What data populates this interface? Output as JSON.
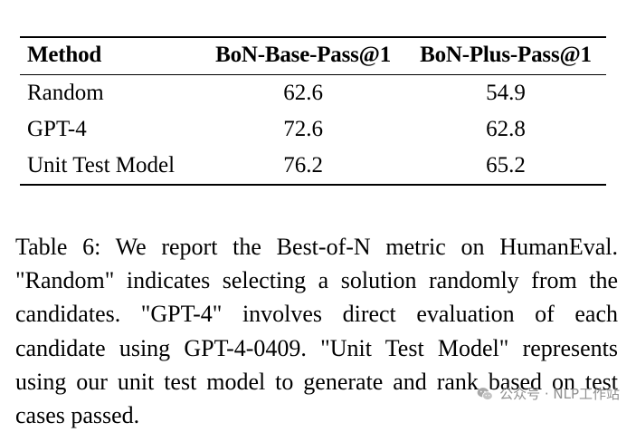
{
  "table": {
    "headers": [
      "Method",
      "BoN-Base-Pass@1",
      "BoN-Plus-Pass@1"
    ],
    "rows": [
      {
        "method": "Random",
        "base": "62.6",
        "plus": "54.9"
      },
      {
        "method": "GPT-4",
        "base": "72.6",
        "plus": "62.8"
      },
      {
        "method": "Unit Test Model",
        "base": "76.2",
        "plus": "65.2"
      }
    ]
  },
  "caption": "Table 6: We report the Best-of-N metric on HumanEval. \"Random\" indicates selecting a solution randomly from the candidates. \"GPT-4\" involves direct evaluation of each candidate using GPT-4-0409. \"Unit Test Model\" represents using our unit test model to generate and rank based on test cases passed.",
  "watermark": {
    "text": "公众号 · NLP工作站",
    "icon": "wechat-icon"
  }
}
